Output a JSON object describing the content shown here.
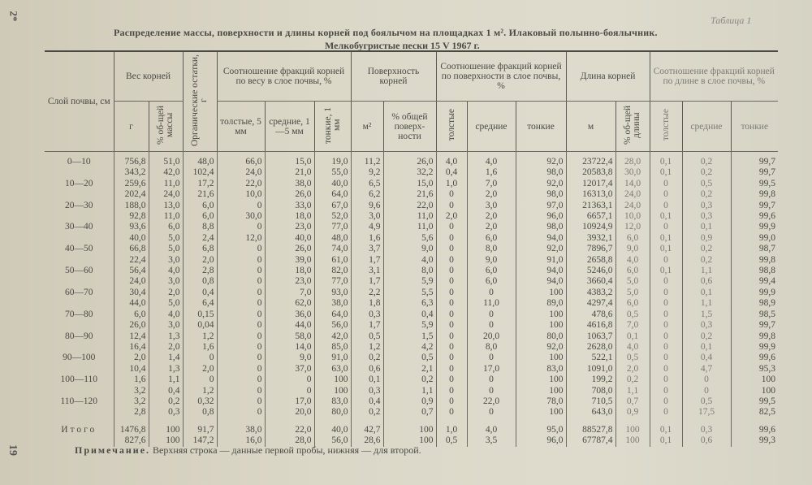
{
  "page_marks": {
    "top": "2*",
    "bottom": "19"
  },
  "table_number": "Таблица 1",
  "title": "Распределение массы, поверхности и длины корней под боялычом  на площадках 1 м². Илаковый полынно-боялычник.",
  "subtitle": "Мелкобугристые пески 15 V 1967 г.",
  "headers": {
    "layer": "Слой почвы, см",
    "weight": "Вес корней",
    "weight_g": "г",
    "weight_pct": "% об-щей массы",
    "organic": "Органические остатки, г",
    "weight_ratio": "Соотношение фракций корней по весу в слое почвы, %",
    "weight_thick": "толстые, 5 мм",
    "weight_medium": "средние, 1—5 мм",
    "weight_thin": "тонкие, 1 мм",
    "surface": "Поверхность корней",
    "surface_m2": "м²",
    "surface_pct": "% общей поверх-ности",
    "surface_ratio": "Соотношение фракций корней по поверхности в слое почвы, %",
    "surface_thick": "толстые",
    "surface_medium": "средние",
    "surface_thin": "тонкие",
    "length": "Длина корней",
    "length_m": "м",
    "length_pct": "% об-щей длины",
    "length_ratio": "Соотношение фракций корней по длине в слое почвы, %",
    "length_thick": "толстые",
    "length_medium": "средние",
    "length_thin": "тонкие"
  },
  "groups": [
    {
      "layer": "0—10",
      "rows": [
        [
          "756,8",
          "51,0",
          "48,0",
          "66,0",
          "15,0",
          "19,0",
          "11,2",
          "26,0",
          "4,0",
          "4,0",
          "92,0",
          "23722,4",
          "28,0",
          "0,1",
          "0,2",
          "99,7"
        ],
        [
          "343,2",
          "42,0",
          "102,4",
          "24,0",
          "21,0",
          "55,0",
          "9,2",
          "32,2",
          "0,4",
          "1,6",
          "98,0",
          "20583,8",
          "30,0",
          "0,1",
          "0,2",
          "99,7"
        ]
      ]
    },
    {
      "layer": "10—20",
      "rows": [
        [
          "259,6",
          "11,0",
          "17,2",
          "22,0",
          "38,0",
          "40,0",
          "6,5",
          "15,0",
          "1,0",
          "7,0",
          "92,0",
          "12017,4",
          "14,0",
          "0",
          "0,5",
          "99,5"
        ],
        [
          "202,4",
          "24,0",
          "21,6",
          "10,0",
          "26,0",
          "64,0",
          "6,2",
          "21,6",
          "0",
          "2,0",
          "98,0",
          "16313,0",
          "24,0",
          "0",
          "0,2",
          "99,8"
        ]
      ]
    },
    {
      "layer": "20—30",
      "rows": [
        [
          "188,0",
          "13,0",
          "6,0",
          "0",
          "33,0",
          "67,0",
          "9,6",
          "22,0",
          "0",
          "3,0",
          "97,0",
          "21363,1",
          "24,0",
          "0",
          "0,3",
          "99,7"
        ],
        [
          "92,8",
          "11,0",
          "6,0",
          "30,0",
          "18,0",
          "52,0",
          "3,0",
          "11,0",
          "2,0",
          "2,0",
          "96,0",
          "6657,1",
          "10,0",
          "0,1",
          "0,3",
          "99,6"
        ]
      ]
    },
    {
      "layer": "30—40",
      "rows": [
        [
          "93,6",
          "6,0",
          "8,8",
          "0",
          "23,0",
          "77,0",
          "4,9",
          "11,0",
          "0",
          "2,0",
          "98,0",
          "10924,9",
          "12,0",
          "0",
          "0,1",
          "99,9"
        ],
        [
          "40,0",
          "5,0",
          "2,4",
          "12,0",
          "40,0",
          "48,0",
          "1,6",
          "5,6",
          "0",
          "6,0",
          "94,0",
          "3932,1",
          "6,0",
          "0,1",
          "0,9",
          "99,0"
        ]
      ]
    },
    {
      "layer": "40—50",
      "rows": [
        [
          "66,8",
          "5,0",
          "6,8",
          "0",
          "26,0",
          "74,0",
          "3,7",
          "9,0",
          "0",
          "8,0",
          "92,0",
          "7896,7",
          "9,0",
          "0,1",
          "0,2",
          "98,7"
        ],
        [
          "22,4",
          "3,0",
          "2,0",
          "0",
          "39,0",
          "61,0",
          "1,7",
          "4,0",
          "0",
          "9,0",
          "91,0",
          "2658,8",
          "4,0",
          "0",
          "0,2",
          "99,8"
        ]
      ]
    },
    {
      "layer": "50—60",
      "rows": [
        [
          "56,4",
          "4,0",
          "2,8",
          "0",
          "18,0",
          "82,0",
          "3,1",
          "8,0",
          "0",
          "6,0",
          "94,0",
          "5246,0",
          "6,0",
          "0,1",
          "1,1",
          "98,8"
        ],
        [
          "24,0",
          "3,0",
          "0,8",
          "0",
          "23,0",
          "77,0",
          "1,7",
          "5,9",
          "0",
          "6,0",
          "94,0",
          "3660,4",
          "5,0",
          "0",
          "0,6",
          "99,4"
        ]
      ]
    },
    {
      "layer": "60—70",
      "rows": [
        [
          "30,4",
          "2,0",
          "0,4",
          "0",
          "7,0",
          "93,0",
          "2,2",
          "5,5",
          "0",
          "0",
          "100",
          "4383,2",
          "5,0",
          "0",
          "0,1",
          "99,9"
        ],
        [
          "44,0",
          "5,0",
          "6,4",
          "0",
          "62,0",
          "38,0",
          "1,8",
          "6,3",
          "0",
          "11,0",
          "89,0",
          "4297,4",
          "6,0",
          "0",
          "1,1",
          "98,9"
        ]
      ]
    },
    {
      "layer": "70—80",
      "rows": [
        [
          "6,0",
          "4,0",
          "0,15",
          "0",
          "36,0",
          "64,0",
          "0,3",
          "0,4",
          "0",
          "0",
          "100",
          "478,6",
          "0,5",
          "0",
          "1,5",
          "98,5"
        ],
        [
          "26,0",
          "3,0",
          "0,04",
          "0",
          "44,0",
          "56,0",
          "1,7",
          "5,9",
          "0",
          "0",
          "100",
          "4616,8",
          "7,0",
          "0",
          "0,3",
          "99,7"
        ]
      ]
    },
    {
      "layer": "80—90",
      "rows": [
        [
          "12,4",
          "1,3",
          "1,2",
          "0",
          "58,0",
          "42,0",
          "0,5",
          "1,5",
          "0",
          "20,0",
          "80,0",
          "1063,7",
          "0,1",
          "0",
          "0,2",
          "99,8"
        ],
        [
          "16,4",
          "2,0",
          "1,6",
          "0",
          "14,0",
          "85,0",
          "1,2",
          "4,2",
          "0",
          "8,0",
          "92,0",
          "2628,0",
          "4,0",
          "0",
          "0,1",
          "99,9"
        ]
      ]
    },
    {
      "layer": "90—100",
      "rows": [
        [
          "2,0",
          "1,4",
          "0",
          "0",
          "9,0",
          "91,0",
          "0,2",
          "0,5",
          "0",
          "0",
          "100",
          "522,1",
          "0,5",
          "0",
          "0,4",
          "99,6"
        ],
        [
          "10,4",
          "1,3",
          "2,0",
          "0",
          "37,0",
          "63,0",
          "0,6",
          "2,1",
          "0",
          "17,0",
          "83,0",
          "1091,0",
          "2,0",
          "0",
          "4,7",
          "95,3"
        ]
      ]
    },
    {
      "layer": "100—110",
      "rows": [
        [
          "1,6",
          "1,1",
          "0",
          "0",
          "0",
          "100",
          "0,1",
          "0,2",
          "0",
          "0",
          "100",
          "199,2",
          "0,2",
          "0",
          "0",
          "100"
        ],
        [
          "3,2",
          "0,4",
          "1,2",
          "0",
          "0",
          "100",
          "0,3",
          "1,1",
          "0",
          "0",
          "100",
          "708,0",
          "1,1",
          "0",
          "0",
          "100"
        ]
      ]
    },
    {
      "layer": "110—120",
      "rows": [
        [
          "3,2",
          "0,2",
          "0,32",
          "0",
          "17,0",
          "83,0",
          "0,4",
          "0,9",
          "0",
          "22,0",
          "78,0",
          "710,5",
          "0,7",
          "0",
          "0,5",
          "99,5"
        ],
        [
          "2,8",
          "0,3",
          "0,8",
          "0",
          "20,0",
          "80,0",
          "0,2",
          "0,7",
          "0",
          "0",
          "100",
          "643,0",
          "0,9",
          "0",
          "17,5",
          "82,5"
        ]
      ]
    },
    {
      "layer": "Итого",
      "total": true,
      "rows": [
        [
          "1476,8",
          "100",
          "91,7",
          "38,0",
          "22,0",
          "40,0",
          "42,7",
          "100",
          "1,0",
          "4,0",
          "95,0",
          "88527,8",
          "100",
          "0,1",
          "0,3",
          "99,6"
        ],
        [
          "827,6",
          "100",
          "147,2",
          "16,0",
          "28,0",
          "56,0",
          "28,6",
          "100",
          "0,5",
          "3,5",
          "96,0",
          "67787,4",
          "100",
          "0,1",
          "0,6",
          "99,3"
        ]
      ]
    }
  ],
  "note": {
    "lead": "Примечание.",
    "text": " Верхняя строка — данные первой пробы, нижняя — для второй."
  }
}
